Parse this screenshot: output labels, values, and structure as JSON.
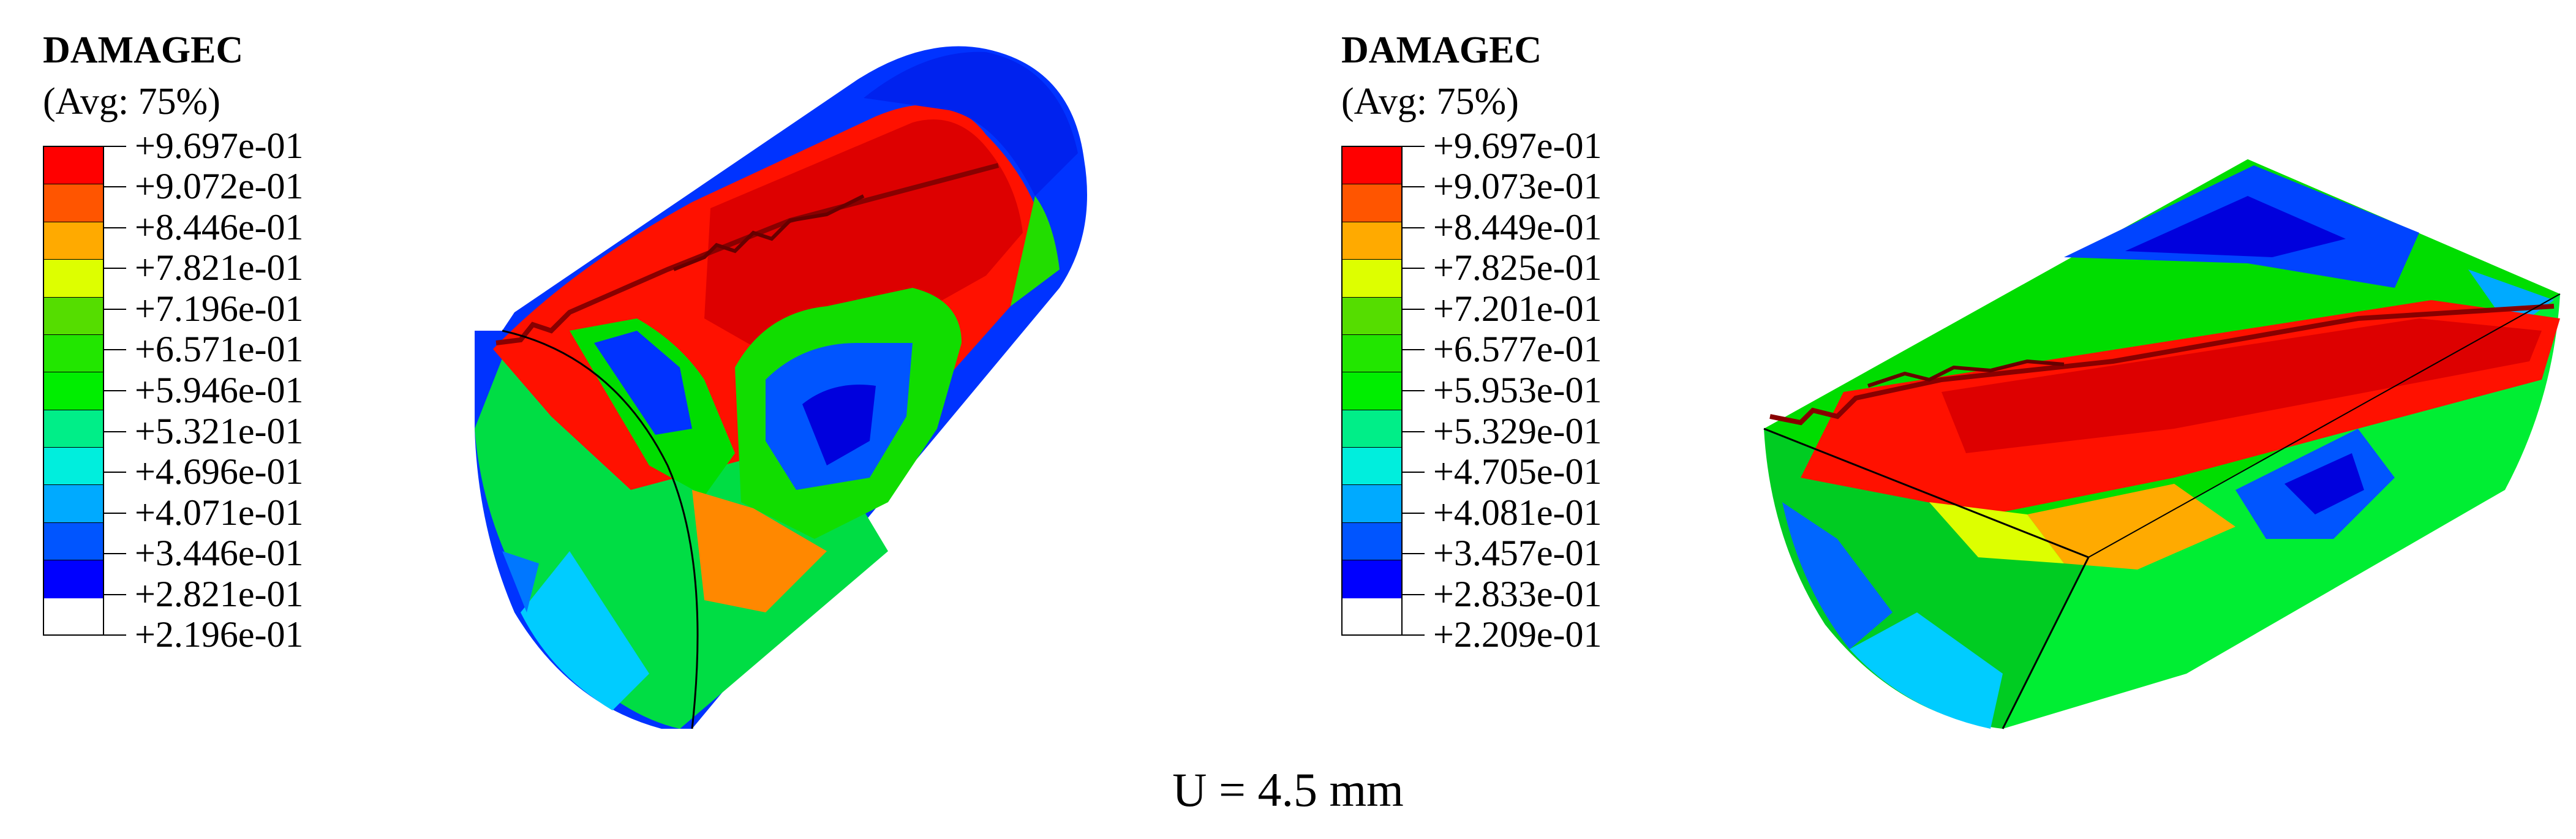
{
  "legends": [
    {
      "title": "DAMAGEC",
      "subtitle": "(Avg: 75%)",
      "labels": [
        "+9.697e-01",
        "+9.072e-01",
        "+8.446e-01",
        "+7.821e-01",
        "+7.196e-01",
        "+6.571e-01",
        "+5.946e-01",
        "+5.321e-01",
        "+4.696e-01",
        "+4.071e-01",
        "+3.446e-01",
        "+2.821e-01",
        "+2.196e-01"
      ]
    },
    {
      "title": "DAMAGEC",
      "subtitle": "(Avg: 75%)",
      "labels": [
        "+9.697e-01",
        "+9.073e-01",
        "+8.449e-01",
        "+7.825e-01",
        "+7.201e-01",
        "+6.577e-01",
        "+5.953e-01",
        "+5.329e-01",
        "+4.705e-01",
        "+4.081e-01",
        "+3.457e-01",
        "+2.833e-01",
        "+2.209e-01"
      ]
    }
  ],
  "colors": {
    "scale": [
      "#ff0000",
      "#ff5500",
      "#ffaa00",
      "#ddff00",
      "#44dd00",
      "#11ee00",
      "#00ff00",
      "#00ee88",
      "#00eecc",
      "#00aaff",
      "#0055ff",
      "#0000ff"
    ]
  },
  "caption": "U = 4.5 mm"
}
